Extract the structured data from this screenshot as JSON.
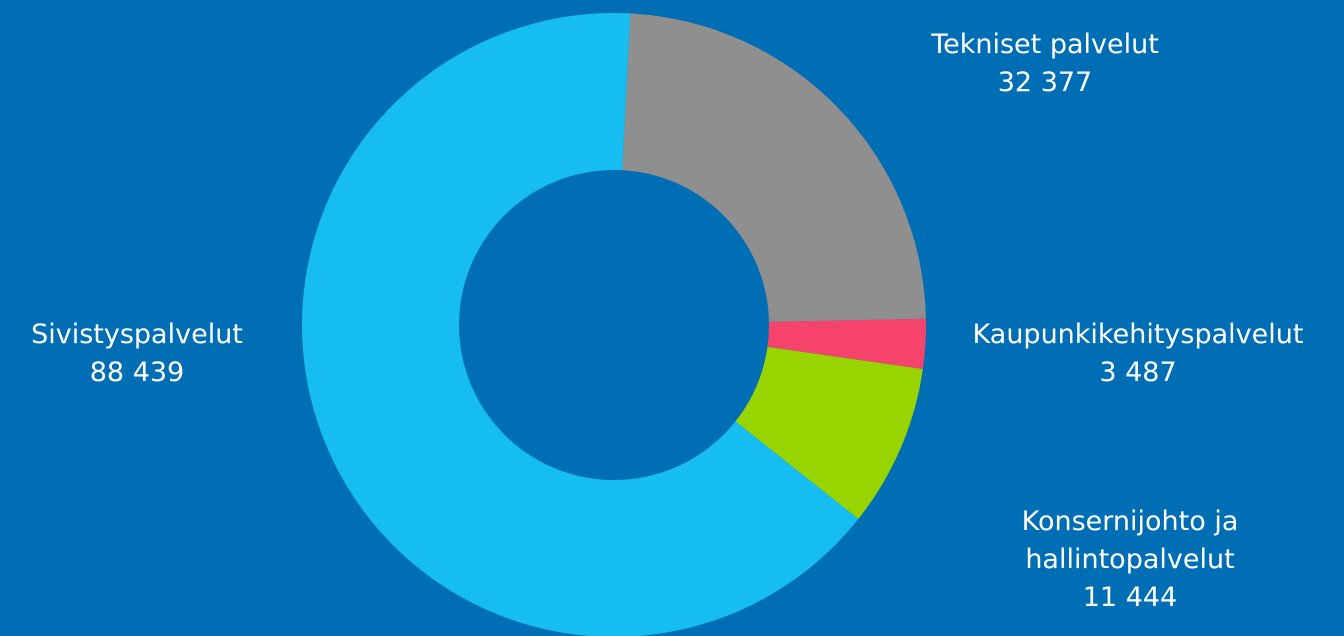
{
  "chart_data": {
    "type": "donut",
    "series": [
      {
        "name": "Tekniset palvelut",
        "color": "#8f8f8f",
        "values": [
          32377
        ],
        "value_labels": [
          "32 377"
        ]
      },
      {
        "name": "Kaupunkikehityspalvelut",
        "color": "#f5436c",
        "values": [
          3487
        ],
        "value_labels": [
          "3 487"
        ]
      },
      {
        "name": "Konsernijohto ja hallintopalvelut",
        "color": "#97d400",
        "values": [
          11444
        ],
        "value_labels": [
          "11 444"
        ]
      },
      {
        "name": "Sivistyspalvelut",
        "color": "#15bdf0",
        "values": [
          88439
        ],
        "value_labels": [
          "88 439"
        ]
      }
    ]
  }
}
